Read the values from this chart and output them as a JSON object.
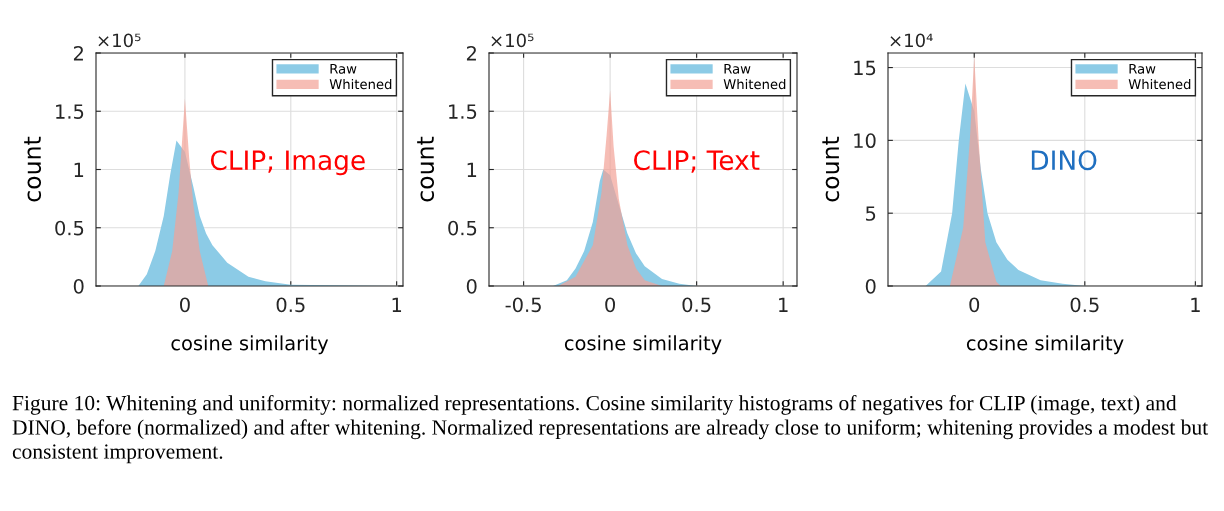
{
  "chart_data": [
    {
      "type": "area",
      "xlabel": "cosine similarity",
      "ylabel": "count",
      "xlim": [
        -0.42,
        1.03
      ],
      "xticks": [
        0,
        0.5,
        1
      ],
      "ylim": [
        0,
        2
      ],
      "yticks": [
        0,
        0.5,
        1,
        1.5,
        2
      ],
      "grid": true,
      "legend": "top right",
      "annotations": [
        "CLIP; Image",
        "×10⁵",
        "Figure 10: Whitening and uniformity: normalized representations. Cosine similarity histograms of negatives for CLIP (image, text) and DINO, before (normalized) and after whitening. Normalized representations are already close to uniform; whitening provides a modest but consistent improvement."
      ],
      "series": [
        {
          "name": "Raw",
          "color": "#8ccbe6",
          "x": [
            -0.22,
            -0.18,
            -0.14,
            -0.1,
            -0.07,
            -0.04,
            0,
            0.04,
            0.07,
            0.1,
            0.13,
            0.2,
            0.3,
            0.38,
            0.5,
            1.0
          ],
          "values": [
            0,
            0.1,
            0.3,
            0.6,
            0.95,
            1.25,
            1.15,
            0.85,
            0.6,
            0.45,
            0.35,
            0.2,
            0.08,
            0.04,
            0.01,
            0
          ]
        },
        {
          "name": "Whitened",
          "color": "#f2a195",
          "x": [
            -0.1,
            -0.06,
            -0.03,
            0,
            0.02,
            0.04,
            0.07,
            0.11
          ],
          "values": [
            0,
            0.3,
            0.8,
            1.61,
            1.1,
            0.7,
            0.3,
            0
          ]
        }
      ]
    },
    {
      "type": "area",
      "xlabel": "cosine similarity",
      "ylabel": "count",
      "xlim": [
        -0.7,
        1.08
      ],
      "xticks": [
        -0.5,
        0,
        0.5,
        1
      ],
      "ylim": [
        0,
        2
      ],
      "yticks": [
        0,
        0.5,
        1,
        1.5,
        2
      ],
      "grid": true,
      "legend": "top right",
      "annotations": [
        "CLIP; Text",
        "×10⁵"
      ],
      "series": [
        {
          "name": "Raw",
          "color": "#8ccbe6",
          "x": [
            -0.33,
            -0.25,
            -0.2,
            -0.15,
            -0.1,
            -0.06,
            -0.04,
            0,
            0.05,
            0.1,
            0.15,
            0.2,
            0.3,
            0.4,
            0.5
          ],
          "values": [
            0,
            0.05,
            0.15,
            0.3,
            0.55,
            0.9,
            1.0,
            0.95,
            0.7,
            0.45,
            0.28,
            0.17,
            0.06,
            0.02,
            0
          ]
        },
        {
          "name": "Whitened",
          "color": "#f2a195",
          "x": [
            -0.3,
            -0.2,
            -0.1,
            -0.05,
            -0.02,
            0,
            0.02,
            0.05,
            0.1,
            0.15,
            0.2,
            0.3
          ],
          "values": [
            0,
            0.08,
            0.35,
            0.8,
            1.3,
            1.68,
            1.2,
            0.75,
            0.35,
            0.15,
            0.05,
            0
          ]
        }
      ]
    },
    {
      "type": "area",
      "xlabel": "cosine similarity",
      "ylabel": "count",
      "xlim": [
        -0.39,
        1.03
      ],
      "xticks": [
        0,
        0.5,
        1
      ],
      "ylim": [
        0,
        16
      ],
      "yticks": [
        0,
        5,
        10,
        15
      ],
      "grid": true,
      "legend": "top right",
      "annotations": [
        "DINO",
        "×10⁴"
      ],
      "series": [
        {
          "name": "Raw",
          "color": "#8ccbe6",
          "x": [
            -0.22,
            -0.15,
            -0.1,
            -0.07,
            -0.04,
            0,
            0.03,
            0.06,
            0.1,
            0.15,
            0.2,
            0.3,
            0.4,
            0.5
          ],
          "values": [
            0,
            1,
            5,
            10,
            13.9,
            12,
            8,
            5,
            3,
            1.8,
            1.1,
            0.4,
            0.15,
            0
          ]
        },
        {
          "name": "Whitened",
          "color": "#f2a195",
          "x": [
            -0.11,
            -0.05,
            -0.02,
            0,
            0.02,
            0.05,
            0.1,
            0.12
          ],
          "values": [
            0,
            4,
            10,
            15.8,
            10,
            3,
            0.3,
            0
          ]
        }
      ]
    }
  ]
}
